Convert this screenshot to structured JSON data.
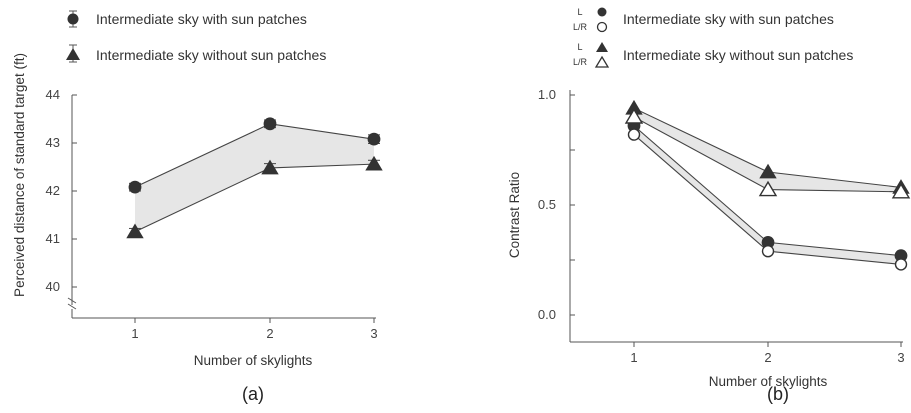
{
  "chart_data": [
    {
      "type": "line",
      "panel_label": "(a)",
      "xlabel": "Number of skylights",
      "ylabel": "Perceived distance of standard target (ft)",
      "x": [
        1,
        2,
        3
      ],
      "xticks": [
        "1",
        "2",
        "3"
      ],
      "yticks": [
        "40",
        "41",
        "42",
        "43",
        "44"
      ],
      "ylim": [
        40,
        44
      ],
      "axis_break": true,
      "series": [
        {
          "name": "Intermediate sky with sun patches",
          "marker": "circle-filled",
          "values": [
            42.08,
            43.4,
            43.08
          ],
          "error": [
            0.08,
            0.08,
            0.09
          ]
        },
        {
          "name": "Intermediate sky without sun patches",
          "marker": "triangle-filled",
          "values": [
            41.15,
            42.48,
            42.56
          ],
          "error": [
            0.07,
            0.09,
            0.08
          ]
        }
      ],
      "legend": "top-left"
    },
    {
      "type": "line",
      "panel_label": "(b)",
      "xlabel": "Number of skylights",
      "ylabel": "Contrast Ratio",
      "x": [
        1,
        2,
        3
      ],
      "xticks": [
        "1",
        "2",
        "3"
      ],
      "yticks": [
        "0.0",
        "0.5",
        "1.0"
      ],
      "ylim": [
        -0.1,
        1.0
      ],
      "series": [
        {
          "name": "Intermediate sky with sun patches",
          "key": "L",
          "marker": "circle-filled",
          "values": [
            0.86,
            0.33,
            0.27
          ]
        },
        {
          "name": "Intermediate sky with sun patches",
          "key": "L/R",
          "marker": "circle-open",
          "values": [
            0.82,
            0.29,
            0.23
          ]
        },
        {
          "name": "Intermediate sky without sun patches",
          "key": "L",
          "marker": "triangle-filled",
          "values": [
            0.94,
            0.65,
            0.58
          ]
        },
        {
          "name": "Intermediate sky without sun patches",
          "key": "L/R",
          "marker": "triangle-open",
          "values": [
            0.9,
            0.57,
            0.56
          ]
        }
      ],
      "legend": "top-right"
    }
  ]
}
